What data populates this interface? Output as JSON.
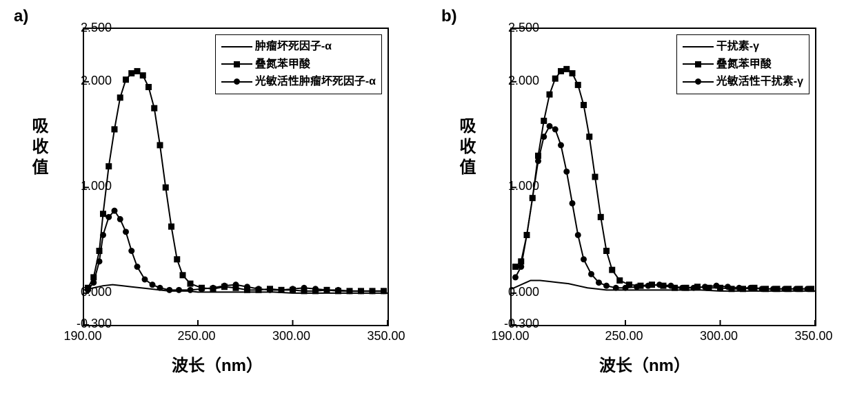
{
  "figure_background": "#ffffff",
  "axis_color": "#000000",
  "series_color": "#000000",
  "line_width": 2,
  "marker_size": 9,
  "tick_length": 7,
  "panelA": {
    "label": "a)",
    "ylabel": "吸收值",
    "xlabel": "波长（nm）",
    "xlim": [
      190.0,
      350.0
    ],
    "ylim": [
      -0.3,
      2.5
    ],
    "xticks": [
      190.0,
      250.0,
      300.0,
      350.0
    ],
    "xtick_labels": [
      "190.00",
      "250.00",
      "300.00",
      "350.00"
    ],
    "yticks": [
      -0.3,
      0.0,
      1.0,
      2.0,
      2.5
    ],
    "ytick_labels": [
      "-0.300",
      "0.000",
      "1.000",
      "2.000",
      "2.500"
    ],
    "legend": {
      "items": [
        {
          "label": "肿瘤坏死因子-α",
          "marker": "line"
        },
        {
          "label": "叠氮苯甲酸",
          "marker": "square"
        },
        {
          "label": "光敏活性肿瘤坏死因子-α",
          "marker": "circle"
        }
      ]
    },
    "series": {
      "line": {
        "x": [
          190,
          192,
          195,
          200,
          205,
          210,
          215,
          220,
          225,
          230,
          235,
          240,
          245,
          250,
          260,
          270,
          280,
          290,
          300,
          310,
          320,
          330,
          340,
          350
        ],
        "y": [
          0.03,
          0.04,
          0.05,
          0.07,
          0.08,
          0.07,
          0.06,
          0.05,
          0.04,
          0.03,
          0.02,
          0.02,
          0.02,
          0.01,
          0.01,
          0.01,
          0.01,
          0.01,
          0.0,
          0.0,
          0.0,
          0.0,
          0.0,
          0.0
        ]
      },
      "square": {
        "x": [
          192,
          195,
          198,
          200,
          203,
          206,
          209,
          212,
          215,
          218,
          221,
          224,
          227,
          230,
          233,
          236,
          239,
          242,
          246,
          252,
          258,
          264,
          270,
          276,
          282,
          288,
          294,
          300,
          306,
          312,
          318,
          324,
          330,
          336,
          342,
          348
        ],
        "y": [
          0.05,
          0.15,
          0.4,
          0.75,
          1.2,
          1.55,
          1.85,
          2.02,
          2.08,
          2.1,
          2.06,
          1.95,
          1.75,
          1.4,
          1.0,
          0.63,
          0.32,
          0.17,
          0.09,
          0.05,
          0.04,
          0.06,
          0.05,
          0.03,
          0.03,
          0.04,
          0.03,
          0.03,
          0.02,
          0.02,
          0.03,
          0.02,
          0.02,
          0.02,
          0.02,
          0.02
        ]
      },
      "circle": {
        "x": [
          192,
          195,
          198,
          200,
          203,
          206,
          209,
          212,
          215,
          218,
          222,
          226,
          230,
          235,
          240,
          246,
          252,
          258,
          264,
          270,
          276,
          282,
          288,
          294,
          300,
          306,
          312,
          318,
          324,
          330,
          336,
          342,
          348
        ],
        "y": [
          0.03,
          0.1,
          0.3,
          0.55,
          0.72,
          0.78,
          0.7,
          0.58,
          0.4,
          0.25,
          0.13,
          0.08,
          0.05,
          0.03,
          0.03,
          0.03,
          0.04,
          0.05,
          0.07,
          0.08,
          0.06,
          0.04,
          0.03,
          0.03,
          0.04,
          0.05,
          0.04,
          0.03,
          0.03,
          0.02,
          0.02,
          0.02,
          0.02
        ]
      }
    }
  },
  "panelB": {
    "label": "b)",
    "ylabel": "吸收值",
    "xlabel": "波长（nm）",
    "xlim": [
      190.0,
      350.0
    ],
    "ylim": [
      -0.3,
      2.5
    ],
    "xticks": [
      190.0,
      250.0,
      300.0,
      350.0
    ],
    "xtick_labels": [
      "190.00",
      "250.00",
      "300.00",
      "350.00"
    ],
    "yticks": [
      -0.3,
      0.0,
      1.0,
      2.0,
      2.5
    ],
    "ytick_labels": [
      "-0.300",
      "0.000",
      "1.000",
      "2.000",
      "2.500"
    ],
    "legend": {
      "items": [
        {
          "label": "干扰素-γ",
          "marker": "line"
        },
        {
          "label": "叠氮苯甲酸",
          "marker": "square"
        },
        {
          "label": "光敏活性干扰素-γ",
          "marker": "circle"
        }
      ]
    },
    "series": {
      "line": {
        "x": [
          190,
          195,
          200,
          205,
          210,
          215,
          220,
          225,
          230,
          235,
          240,
          245,
          250,
          260,
          270,
          280,
          290,
          300,
          310,
          320,
          330,
          340,
          350
        ],
        "y": [
          0.04,
          0.08,
          0.12,
          0.12,
          0.11,
          0.1,
          0.09,
          0.07,
          0.05,
          0.04,
          0.03,
          0.03,
          0.03,
          0.03,
          0.03,
          0.03,
          0.03,
          0.02,
          0.02,
          0.02,
          0.02,
          0.02,
          0.02
        ]
      },
      "square": {
        "x": [
          192,
          195,
          198,
          201,
          204,
          207,
          210,
          213,
          216,
          219,
          222,
          225,
          228,
          231,
          234,
          237,
          240,
          243,
          247,
          252,
          258,
          264,
          270,
          276,
          282,
          288,
          294,
          300,
          306,
          312,
          318,
          324,
          330,
          336,
          342,
          348
        ],
        "y": [
          0.25,
          0.3,
          0.55,
          0.9,
          1.3,
          1.63,
          1.88,
          2.03,
          2.1,
          2.12,
          2.08,
          1.97,
          1.78,
          1.48,
          1.1,
          0.72,
          0.4,
          0.22,
          0.12,
          0.08,
          0.07,
          0.08,
          0.07,
          0.05,
          0.05,
          0.06,
          0.05,
          0.05,
          0.04,
          0.04,
          0.05,
          0.04,
          0.04,
          0.04,
          0.04,
          0.04
        ]
      },
      "circle": {
        "x": [
          192,
          195,
          198,
          201,
          204,
          207,
          210,
          213,
          216,
          219,
          222,
          225,
          228,
          232,
          236,
          240,
          245,
          250,
          256,
          262,
          268,
          274,
          280,
          286,
          292,
          298,
          304,
          310,
          316,
          322,
          328,
          334,
          340,
          346
        ],
        "y": [
          0.15,
          0.25,
          0.55,
          0.9,
          1.25,
          1.48,
          1.58,
          1.55,
          1.4,
          1.15,
          0.85,
          0.55,
          0.32,
          0.18,
          0.1,
          0.07,
          0.05,
          0.05,
          0.06,
          0.07,
          0.08,
          0.07,
          0.05,
          0.05,
          0.06,
          0.07,
          0.06,
          0.05,
          0.05,
          0.04,
          0.04,
          0.04,
          0.04,
          0.04
        ]
      }
    }
  }
}
